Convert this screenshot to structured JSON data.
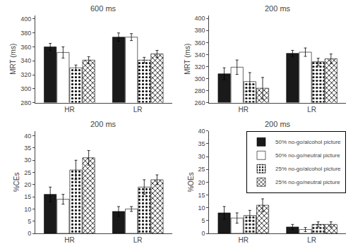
{
  "chart_data": [
    {
      "type": "bar",
      "title": "600 ms",
      "ylabel": "MRT (ms)",
      "categories": [
        "HR",
        "LR"
      ],
      "series": [
        {
          "name": "50% no-go/alcohol picture",
          "color": "#1a1a1a",
          "values": [
            360,
            374
          ],
          "errors": [
            5,
            6
          ]
        },
        {
          "name": "50% no-go/neutral picture",
          "color": "#ffffff",
          "values": [
            352,
            374
          ],
          "errors": [
            8,
            5
          ]
        },
        {
          "name": "25% no-go/alcohol picture",
          "color": "#d8d8d8",
          "values": [
            330,
            341
          ],
          "errors": [
            4,
            4
          ]
        },
        {
          "name": "25% no-go/neutral picture",
          "color": "#b0b0b0",
          "values": [
            341,
            350
          ],
          "errors": [
            5,
            5
          ]
        }
      ],
      "ylim": [
        280,
        405
      ],
      "yticks": [
        280,
        300,
        320,
        340,
        360,
        380,
        400
      ],
      "grid": false
    },
    {
      "type": "bar",
      "title": "200 ms",
      "ylabel": "MRT (ms)",
      "categories": [
        "HR",
        "LR"
      ],
      "series": [
        {
          "name": "50% no-go/alcohol picture",
          "color": "#1a1a1a",
          "values": [
            308,
            342
          ],
          "errors": [
            10,
            5
          ]
        },
        {
          "name": "50% no-go/neutral picture",
          "color": "#ffffff",
          "values": [
            319,
            344
          ],
          "errors": [
            12,
            7
          ]
        },
        {
          "name": "25% no-go/alcohol picture",
          "color": "#d8d8d8",
          "values": [
            295,
            328
          ],
          "errors": [
            15,
            6
          ]
        },
        {
          "name": "25% no-go/neutral picture",
          "color": "#b0b0b0",
          "values": [
            284,
            333
          ],
          "errors": [
            18,
            8
          ]
        }
      ],
      "ylim": [
        260,
        405
      ],
      "yticks": [
        260,
        280,
        300,
        320,
        340,
        360,
        380,
        400
      ],
      "grid": false
    },
    {
      "type": "bar",
      "title": "200 ms",
      "ylabel": "%CEs",
      "categories": [
        "HR",
        "LR"
      ],
      "series": [
        {
          "name": "50% no-go/alcohol picture",
          "color": "#1a1a1a",
          "values": [
            16,
            9
          ],
          "errors": [
            3,
            2
          ]
        },
        {
          "name": "50% no-go/neutral picture",
          "color": "#ffffff",
          "values": [
            14,
            10
          ],
          "errors": [
            2,
            1
          ]
        },
        {
          "name": "25% no-go/alcohol picture",
          "color": "#d8d8d8",
          "values": [
            26,
            19
          ],
          "errors": [
            4,
            3
          ]
        },
        {
          "name": "25% no-go/neutral picture",
          "color": "#b0b0b0",
          "values": [
            31,
            22
          ],
          "errors": [
            3,
            2
          ]
        }
      ],
      "ylim": [
        0,
        42
      ],
      "yticks": [
        0,
        5,
        10,
        15,
        20,
        25,
        30,
        35,
        40
      ],
      "grid": false
    },
    {
      "type": "bar",
      "title": "200 ms",
      "ylabel": "%OEs",
      "categories": [
        "HR",
        "LR"
      ],
      "series": [
        {
          "name": "50% no-go/alcohol picture",
          "color": "#1a1a1a",
          "values": [
            8,
            2.5
          ],
          "errors": [
            2.5,
            1
          ]
        },
        {
          "name": "50% no-go/neutral picture",
          "color": "#ffffff",
          "values": [
            6,
            1.5
          ],
          "errors": [
            2,
            0.8
          ]
        },
        {
          "name": "25% no-go/alcohol picture",
          "color": "#d8d8d8",
          "values": [
            7,
            3.5
          ],
          "errors": [
            2,
            1
          ]
        },
        {
          "name": "25% no-go/neutral picture",
          "color": "#b0b0b0",
          "values": [
            11,
            3.5
          ],
          "errors": [
            2.5,
            1
          ]
        }
      ],
      "ylim": [
        0,
        40
      ],
      "yticks": [
        0,
        5,
        10,
        15,
        20,
        25,
        30,
        35,
        40
      ],
      "grid": false,
      "legend": "upper right"
    }
  ]
}
